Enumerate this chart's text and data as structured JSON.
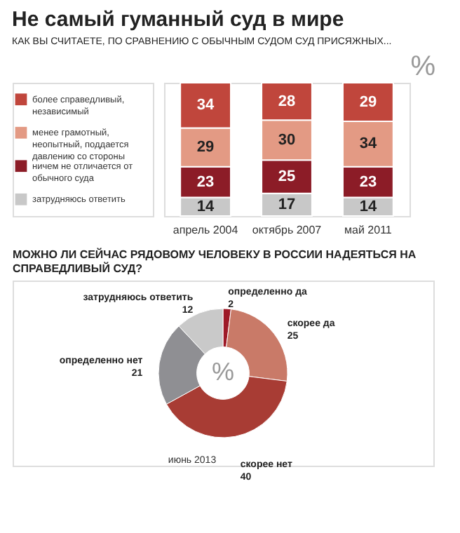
{
  "chart_data": [
    {
      "type": "bar",
      "title": "Не самый гуманный суд в мире",
      "subtitle": "КАК ВЫ СЧИТАЕТЕ, ПО СРАВНЕНИЮ С ОБЫЧНЫМ СУДОМ СУД ПРИСЯЖНЫХ...",
      "ylabel": "%",
      "stacked": true,
      "data_labels": true,
      "legend": "left",
      "categories": [
        "апрель 2004",
        "октябрь 2007",
        "май 2011"
      ],
      "series": [
        {
          "name": "затрудняюсь ответить",
          "color": "#c8c8c8",
          "values": [
            14,
            17,
            14
          ]
        },
        {
          "name": "ничем не отличается от обычного суда",
          "color": "#8c1c27",
          "values": [
            23,
            25,
            23
          ]
        },
        {
          "name": "менее грамотный, неопытный, поддается давлению со стороны",
          "color": "#e39a84",
          "values": [
            29,
            30,
            34
          ]
        },
        {
          "name": "более справедливый, независимый",
          "color": "#c0463c",
          "values": [
            34,
            28,
            29
          ]
        }
      ]
    },
    {
      "type": "donut",
      "title": "МОЖНО ЛИ СЕЙЧАС РЯДОВОМУ ЧЕЛОВЕКУ В РОССИИ НАДЕЯТЬСЯ НА СПРАВЕДЛИВЫЙ СУД?",
      "data_labels": true,
      "annotations": [
        "%",
        "июнь 2013"
      ],
      "categories": [
        "определенно да",
        "скорее да",
        "скорее нет",
        "определенно нет",
        "затрудняюсь ответить"
      ],
      "values": [
        2,
        25,
        40,
        21,
        12
      ],
      "colors": [
        "#9e1a28",
        "#c97a68",
        "#a83c34",
        "#8f8f93",
        "#c9c9c9"
      ]
    }
  ]
}
